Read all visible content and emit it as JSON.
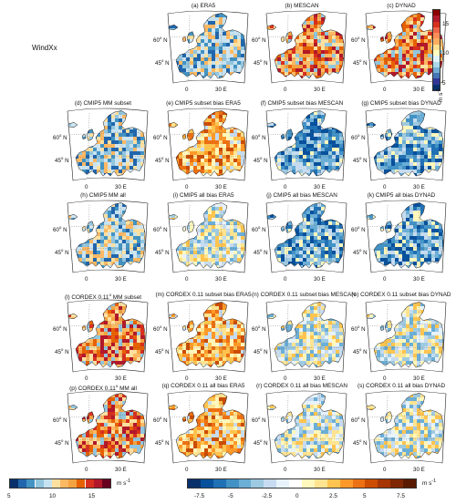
{
  "figure": {
    "variable_label": "WindXx",
    "lat_labels": [
      "60",
      "45"
    ],
    "lat_hemisphere": "N",
    "lon_labels": [
      "0",
      "30"
    ],
    "lon_hemisphere": "E",
    "degree_symbol": "o"
  },
  "panels": [
    {
      "title": "(a) ERA5",
      "style": "abs_low"
    },
    {
      "title": "(b) MESCAN",
      "style": "abs_high"
    },
    {
      "title": "(c) DYNAD",
      "style": "abs_high"
    },
    {
      "title": "(d) CMIP5 MM subset",
      "style": "abs_low"
    },
    {
      "title": "(e) CMIP5 subset bias ERA5",
      "style": "bias_pos"
    },
    {
      "title": "(f) CMIP5 subset bias MESCAN",
      "style": "bias_neg"
    },
    {
      "title": "(g) CMIP5 subset bias DYNAD",
      "style": "bias_neg"
    },
    {
      "title": "(h) CMIP5 MM all",
      "style": "abs_low"
    },
    {
      "title": "(i) CMIP5 all bias ERA5",
      "style": "bias_mix"
    },
    {
      "title": "(j) CMIP5 all bias MESCAN",
      "style": "bias_neg"
    },
    {
      "title": "(k) CMIP5 all bias DYNAD",
      "style": "bias_neg"
    },
    {
      "title": "(l) CORDEX 0.11",
      "title_sup": "o",
      "title_tail": " MM subset",
      "style": "abs_high"
    },
    {
      "title": "(m) CORDEX 0.11 subset bias ERA5",
      "style": "bias_pos"
    },
    {
      "title": "(n) CORDEX 0.11 subset bias MESCAN",
      "style": "bias_mix"
    },
    {
      "title": "(o) CORDEX 0.11 subset bias DYNAD",
      "style": "bias_mix"
    },
    {
      "title": "(p) CORDEX 0.11",
      "title_sup": "o",
      "title_tail": " MM all",
      "style": "abs_high"
    },
    {
      "title": "(q) CORDEX 0.11 all bias ERA5",
      "style": "bias_pos"
    },
    {
      "title": "(r) CORDEX 0.11 all bias MESCAN",
      "style": "bias_mix"
    },
    {
      "title": "(s) CORDEX 0.11 all bias DYNAD",
      "style": "bias_mix"
    }
  ],
  "colorbar_abs_vertical": {
    "ticks": [
      "15",
      "10",
      "5"
    ],
    "unit": "m s",
    "unit_sup": "-1",
    "colors": [
      "#8b0000",
      "#b2182b",
      "#d7301f",
      "#ef6548",
      "#fc8d59",
      "#fdae61",
      "#fee090",
      "#ffffbf",
      "#e0f3f8",
      "#abd9e9",
      "#74add1",
      "#4575b4",
      "#313695",
      "#08306b"
    ]
  },
  "colorbar_abs_bottom": {
    "ticks": [
      "5",
      "10",
      "15"
    ],
    "unit": "m s",
    "unit_sup": "-1",
    "colors": [
      "#08306b",
      "#2166ac",
      "#4393c3",
      "#92c5de",
      "#c6e2f0",
      "#fde0a0",
      "#fdb863",
      "#f4a341",
      "#e66101",
      "#d7301f",
      "#b2182b",
      "#67001f"
    ]
  },
  "colorbar_bias_bottom": {
    "ticks": [
      "-7.5",
      "-5",
      "-2.5",
      "0",
      "2.5",
      "5",
      "7.5"
    ],
    "unit": "m s",
    "unit_sup": "-1",
    "colors": [
      "#08306b",
      "#08519c",
      "#2171b5",
      "#4292c6",
      "#6baed6",
      "#9ecae1",
      "#c6dbef",
      "#e7f2fa",
      "#ffffff",
      "#fff7bc",
      "#fee391",
      "#fec44f",
      "#fe9929",
      "#ec7014",
      "#cc4c02",
      "#a63603",
      "#7f2704",
      "#5a1a02"
    ]
  },
  "palettes": {
    "abs_low": [
      "#2166ac",
      "#4393c3",
      "#92c5de",
      "#c6e2f0",
      "#d1e5f0",
      "#fde0a0",
      "#fdb863"
    ],
    "abs_high": [
      "#fdb863",
      "#f4a341",
      "#e66101",
      "#d7301f",
      "#b2182b",
      "#fde0a0",
      "#92c5de"
    ],
    "bias_pos": [
      "#fee391",
      "#fec44f",
      "#fe9929",
      "#ec7014",
      "#c6dbef",
      "#fff7bc",
      "#cc4c02"
    ],
    "bias_neg": [
      "#2171b5",
      "#4292c6",
      "#6baed6",
      "#9ecae1",
      "#c6dbef",
      "#08519c",
      "#fff7bc"
    ],
    "bias_mix": [
      "#c6dbef",
      "#9ecae1",
      "#fff7bc",
      "#fee391",
      "#e7f2fa",
      "#6baed6",
      "#fec44f"
    ]
  },
  "colors": {
    "sea": "#ffffff",
    "coast": "#111111",
    "grid": "#555555"
  }
}
